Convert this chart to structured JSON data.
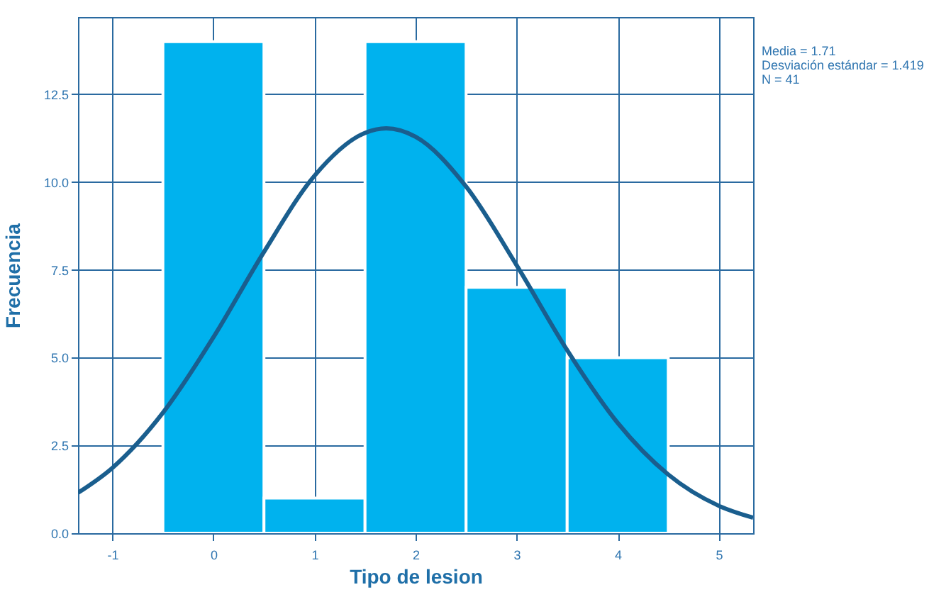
{
  "chart_data": {
    "type": "histogram",
    "xlabel": "Tipo de lesion",
    "ylabel": "Frecuencia",
    "xlim": [
      -1.34,
      5.34
    ],
    "xticks": [
      -1,
      0,
      1,
      2,
      3,
      4,
      5
    ],
    "ylim": [
      0,
      14.7
    ],
    "yticks": [
      {
        "value": 0,
        "label": "0.0"
      },
      2.5,
      {
        "value": 5,
        "label": "5.0"
      },
      7.5,
      {
        "value": 10,
        "label": "10.0"
      },
      12.5
    ],
    "grid": true,
    "series": [
      {
        "type": "histogram",
        "color": "#00b2ee",
        "bins": [
          -0.5,
          0.5,
          1.5,
          2.5,
          3.5,
          4.5
        ],
        "values": [
          14,
          1,
          14,
          7,
          5
        ]
      },
      {
        "type": "line",
        "color": "#1a5e8e",
        "x": [
          -1.34,
          -1,
          -0.5,
          0,
          0.5,
          1,
          1.5,
          1.71,
          2,
          2.5,
          3,
          3.5,
          4,
          4.5,
          5,
          5.34
        ],
        "values": [
          1.15,
          1.86,
          3.43,
          5.58,
          8.01,
          10.18,
          11.4,
          11.53,
          11.29,
          9.87,
          7.63,
          5.21,
          3.14,
          1.67,
          0.78,
          0.44
        ]
      }
    ],
    "annotations": [
      "Media = 1.71",
      "Desviación estándar = 1.419",
      "N = 41"
    ]
  }
}
